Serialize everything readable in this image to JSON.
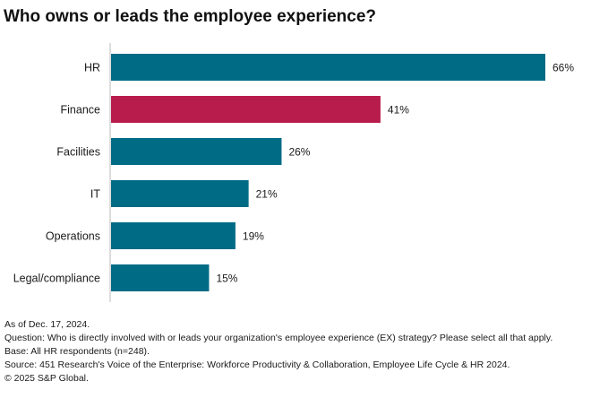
{
  "chart_data": {
    "type": "bar",
    "orientation": "horizontal",
    "title": "Who owns or leads the employee experience?",
    "categories": [
      "HR",
      "Finance",
      "Facilities",
      "IT",
      "Operations",
      "Legal/compliance"
    ],
    "values": [
      66,
      41,
      26,
      21,
      19,
      15
    ],
    "value_labels": [
      "66%",
      "41%",
      "26%",
      "21%",
      "19%",
      "15%"
    ],
    "unit": "%",
    "xlim": [
      0,
      66
    ],
    "highlight_category": "Finance",
    "colors": {
      "default": "#006b85",
      "highlight": "#b81c4c",
      "axis": "#bbbbbb"
    },
    "xlabel": "",
    "ylabel": ""
  },
  "notes": {
    "as_of": "As of Dec. 17, 2024.",
    "question": "Question: Who is directly involved with or leads your organization's employee experience (EX) strategy? Please select all that apply.",
    "base": "Base: All HR respondents (n=248).",
    "source": "Source: 451 Research's Voice of the Enterprise: Workforce Productivity & Collaboration, Employee Life Cycle & HR 2024.",
    "copyright": "© 2025 S&P Global."
  }
}
